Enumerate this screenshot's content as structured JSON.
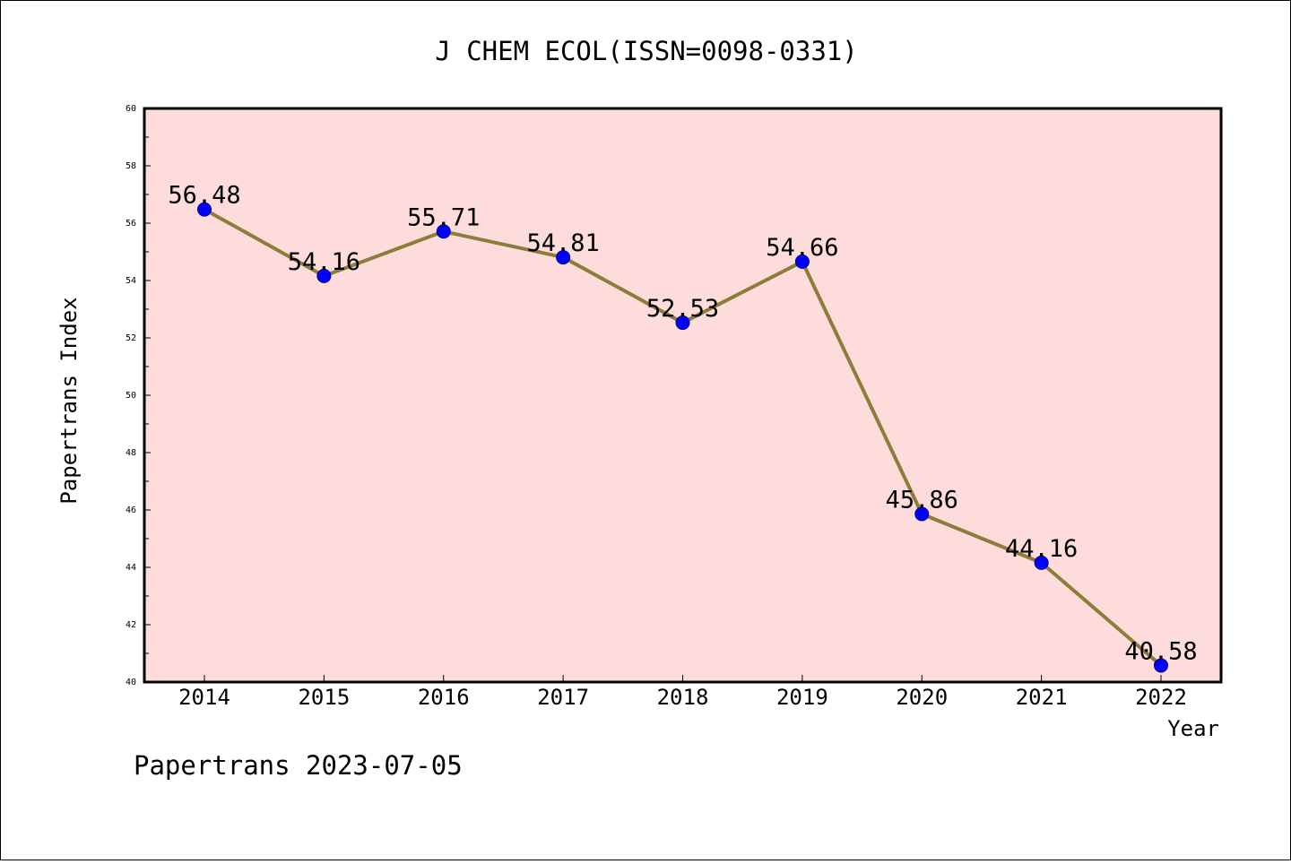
{
  "chart_data": {
    "type": "line",
    "title": "J CHEM ECOL(ISSN=0098-0331)",
    "xlabel": "Year",
    "ylabel": "Papertrans Index",
    "footer": "Papertrans 2023-07-05",
    "categories": [
      "2014",
      "2015",
      "2016",
      "2017",
      "2018",
      "2019",
      "2020",
      "2021",
      "2022"
    ],
    "series": [
      {
        "values": [
          56.48,
          54.16,
          55.71,
          54.81,
          52.53,
          54.66,
          45.86,
          44.16,
          40.58
        ],
        "labels": [
          "56.48",
          "54.16",
          "55.71",
          "54.81",
          "52.53",
          "54.66",
          "45.86",
          "44.16",
          "40.58"
        ]
      }
    ],
    "ylim": [
      40,
      60
    ],
    "yticks": [
      "40",
      "42",
      "44",
      "46",
      "48",
      "50",
      "52",
      "54",
      "56",
      "58",
      "60"
    ],
    "grid": false,
    "colors": {
      "plot_background": "#ffdcdc",
      "line": "#8b7d3a",
      "marker": "#0000ff",
      "axis": "#000000"
    }
  }
}
